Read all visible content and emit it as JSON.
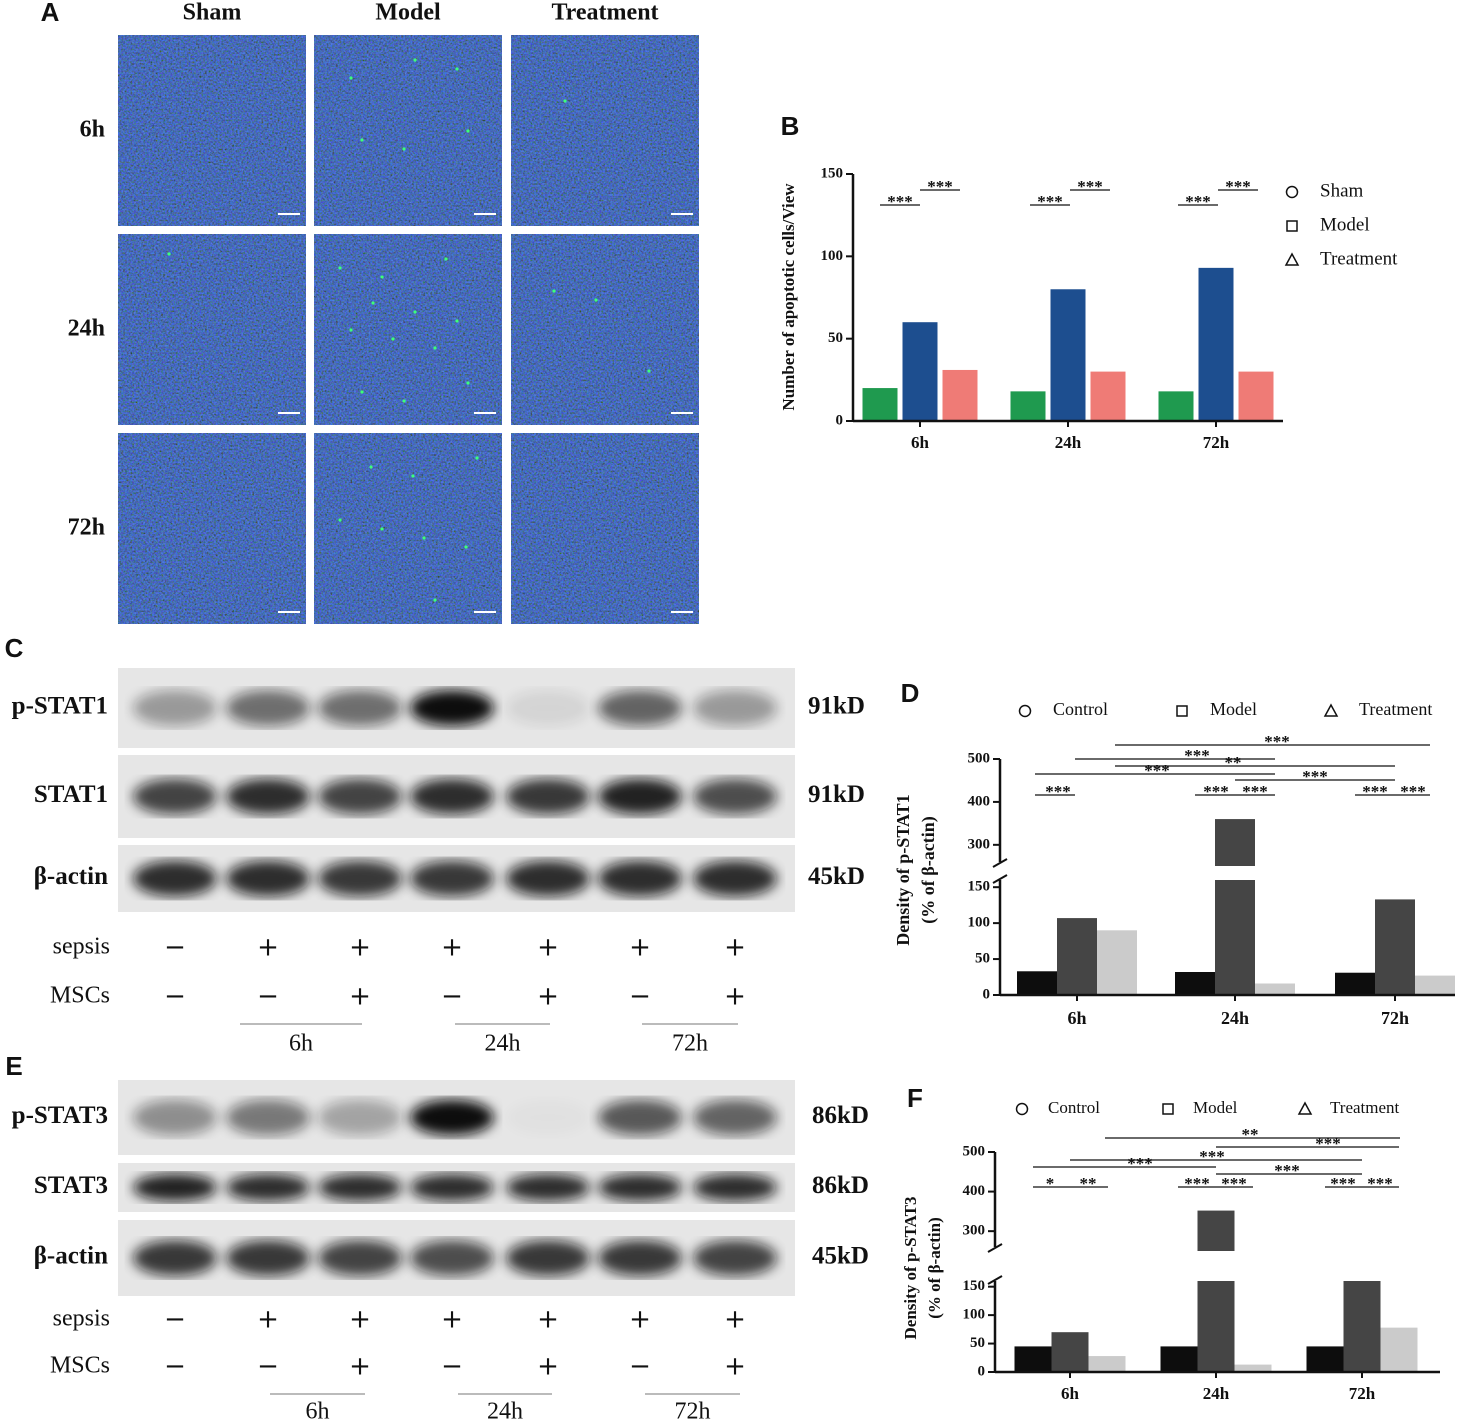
{
  "panel_labels": [
    "A",
    "B",
    "C",
    "D",
    "E",
    "F"
  ],
  "microscopy": {
    "columns": [
      "Sham",
      "Model",
      "Treatment"
    ],
    "rows": [
      "6h",
      "24h",
      "72h"
    ]
  },
  "blots": [
    {
      "rows": [
        {
          "label": "p-STAT1",
          "size": "91kD"
        },
        {
          "label": "STAT1",
          "size": "91kD"
        },
        {
          "label": "β-actin",
          "size": "45kD"
        }
      ],
      "conditions": [
        {
          "label": "sepsis",
          "marks": [
            "−",
            "+",
            "+",
            "+",
            "+",
            "+",
            "+"
          ]
        },
        {
          "label": "MSCs",
          "marks": [
            "−",
            "−",
            "+",
            "−",
            "+",
            "−",
            "+"
          ]
        }
      ],
      "times": [
        "6h",
        "24h",
        "72h"
      ]
    },
    {
      "rows": [
        {
          "label": "p-STAT3",
          "size": "86kD"
        },
        {
          "label": "STAT3",
          "size": "86kD"
        },
        {
          "label": "β-actin",
          "size": "45kD"
        }
      ],
      "conditions": [
        {
          "label": "sepsis",
          "marks": [
            "−",
            "+",
            "+",
            "+",
            "+",
            "+",
            "+"
          ]
        },
        {
          "label": "MSCs",
          "marks": [
            "−",
            "−",
            "+",
            "−",
            "+",
            "−",
            "+"
          ]
        }
      ],
      "times": [
        "6h",
        "24h",
        "72h"
      ]
    }
  ],
  "chart_data": [
    {
      "type": "bar",
      "ylabel": [
        "Number of apoptotic cells/View"
      ],
      "categories": [
        "6h",
        "24h",
        "72h"
      ],
      "series": [
        {
          "name": "Sham",
          "color": "#1f9a4f",
          "marker": "circle",
          "values": [
            20,
            18,
            18
          ]
        },
        {
          "name": "Model",
          "color": "#1d4e8f",
          "marker": "square",
          "values": [
            60,
            80,
            93
          ]
        },
        {
          "name": "Treatment",
          "color": "#ef7b76",
          "marker": "triangle",
          "values": [
            31,
            30,
            30
          ]
        }
      ],
      "ylim": [
        0,
        150
      ],
      "yticks": [
        0,
        50,
        100,
        150
      ],
      "legend": "right",
      "annotations": [
        "***",
        "***",
        "***",
        "***",
        "***",
        "***"
      ]
    },
    {
      "type": "bar",
      "ylabel": [
        "Density of p-STAT1",
        "(% of β-actin)"
      ],
      "categories": [
        "6h",
        "24h",
        "72h"
      ],
      "series": [
        {
          "name": "Control",
          "color": "#0d0d0d",
          "marker": "circle",
          "values": [
            33,
            32,
            31
          ]
        },
        {
          "name": "Model",
          "color": "#454545",
          "marker": "square",
          "values": [
            107,
            360,
            133
          ]
        },
        {
          "name": "Treatment",
          "color": "#cbcbcb",
          "marker": "triangle",
          "values": [
            90,
            16,
            27
          ]
        }
      ],
      "ylim": [
        0,
        500
      ],
      "ybreak": [
        160,
        260
      ],
      "yticks": [
        0,
        50,
        100,
        150,
        300,
        400,
        500
      ],
      "legend": "top",
      "annotations": [
        "***",
        "***",
        "**",
        "***",
        "***",
        "***",
        "***",
        "***",
        "***",
        "***"
      ]
    },
    {
      "type": "bar",
      "ylabel": [
        "Density of p-STAT3",
        "(% of β-actin)"
      ],
      "categories": [
        "6h",
        "24h",
        "72h"
      ],
      "series": [
        {
          "name": "Control",
          "color": "#0d0d0d",
          "marker": "circle",
          "values": [
            45,
            45,
            45
          ]
        },
        {
          "name": "Model",
          "color": "#454545",
          "marker": "square",
          "values": [
            70,
            352,
            168
          ]
        },
        {
          "name": "Treatment",
          "color": "#cbcbcb",
          "marker": "triangle",
          "values": [
            28,
            13,
            78
          ]
        }
      ],
      "ylim": [
        0,
        500
      ],
      "ybreak": [
        160,
        260
      ],
      "yticks": [
        0,
        50,
        100,
        150,
        300,
        400,
        500
      ],
      "legend": "top",
      "annotations": [
        "**",
        "***",
        "***",
        "***",
        "***",
        "*",
        "**",
        "***",
        "***",
        "***",
        "***"
      ]
    }
  ]
}
